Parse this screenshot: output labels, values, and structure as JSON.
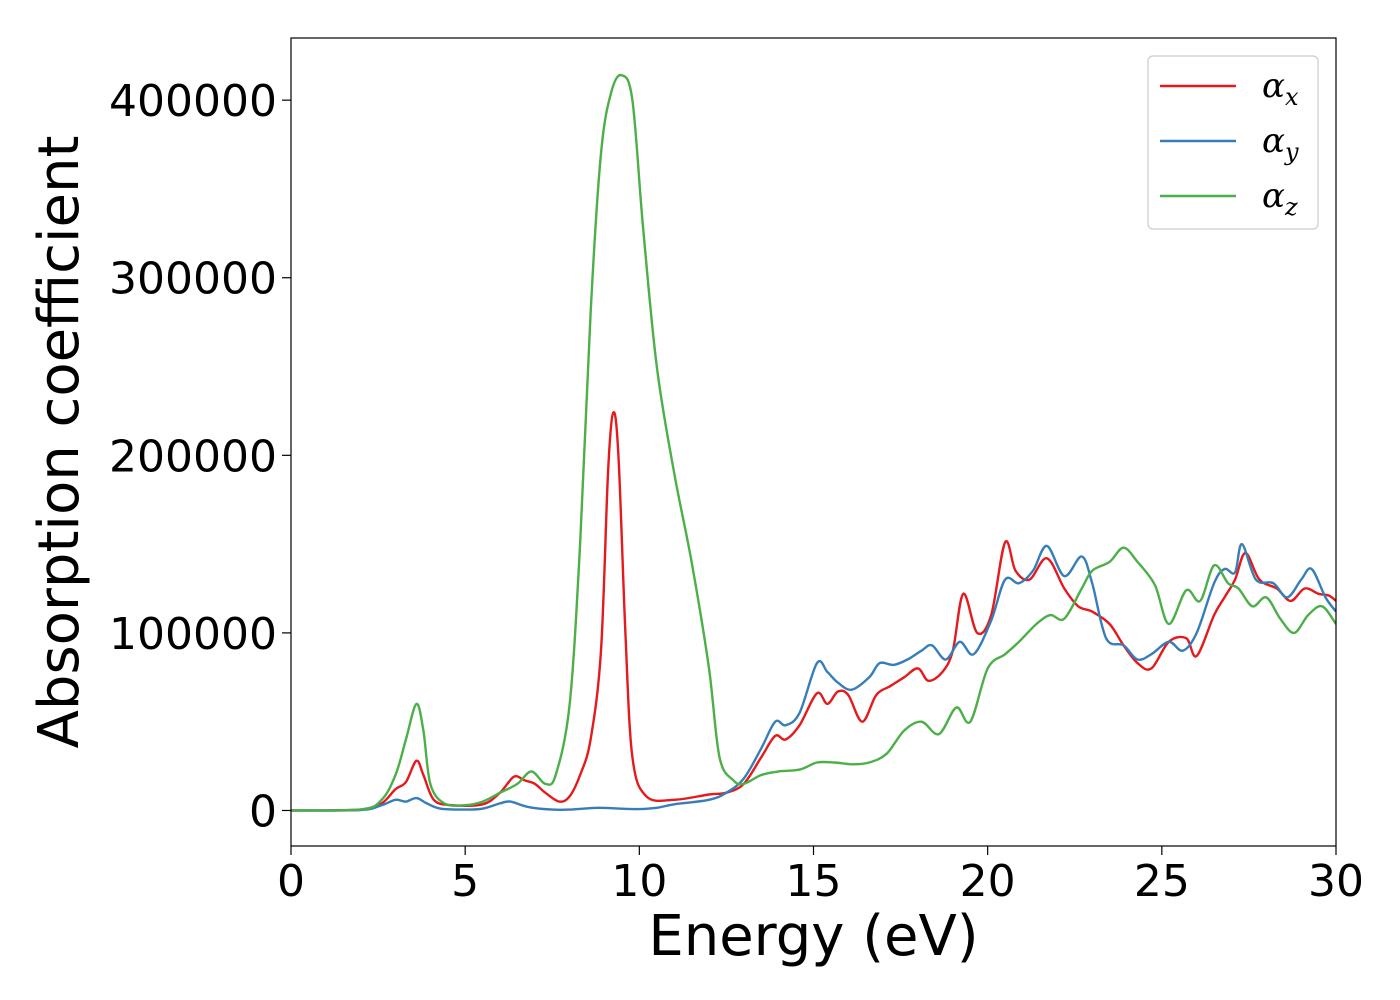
{
  "chart_data": {
    "type": "line",
    "title": "",
    "xlabel": "Energy (eV)",
    "ylabel": "Absorption coefficient",
    "xlim": [
      0,
      30
    ],
    "ylim": [
      -20000,
      435000
    ],
    "xticks": [
      0,
      5,
      10,
      15,
      20,
      25,
      30
    ],
    "yticks": [
      0,
      100000,
      200000,
      300000,
      400000
    ],
    "xtick_labels": [
      "0",
      "5",
      "10",
      "15",
      "20",
      "25",
      "30"
    ],
    "ytick_labels": [
      "0",
      "100000",
      "200000",
      "300000",
      "400000"
    ],
    "grid": false,
    "legend_position": "top-right",
    "series": [
      {
        "name": "α_x",
        "legend_symbol": "α",
        "legend_sub": "x",
        "color": "#e41a1c",
        "points": [
          [
            0,
            0
          ],
          [
            2,
            500
          ],
          [
            2.6,
            4000
          ],
          [
            3.0,
            12000
          ],
          [
            3.3,
            16000
          ],
          [
            3.6,
            28000
          ],
          [
            3.8,
            20000
          ],
          [
            4.1,
            6000
          ],
          [
            4.6,
            3000
          ],
          [
            5.5,
            3500
          ],
          [
            6.0,
            10000
          ],
          [
            6.4,
            19000
          ],
          [
            6.7,
            17000
          ],
          [
            7.0,
            15000
          ],
          [
            7.3,
            10000
          ],
          [
            7.7,
            5000
          ],
          [
            8.0,
            8000
          ],
          [
            8.3,
            20000
          ],
          [
            8.6,
            40000
          ],
          [
            8.9,
            90000
          ],
          [
            9.1,
            190000
          ],
          [
            9.25,
            224000
          ],
          [
            9.4,
            200000
          ],
          [
            9.6,
            100000
          ],
          [
            9.8,
            30000
          ],
          [
            10.2,
            8000
          ],
          [
            11,
            6000
          ],
          [
            12,
            9000
          ],
          [
            12.5,
            10000
          ],
          [
            13,
            15000
          ],
          [
            13.5,
            30000
          ],
          [
            13.9,
            42000
          ],
          [
            14.2,
            40000
          ],
          [
            14.6,
            48000
          ],
          [
            15.1,
            66000
          ],
          [
            15.4,
            60000
          ],
          [
            15.7,
            67000
          ],
          [
            16.0,
            65000
          ],
          [
            16.4,
            50000
          ],
          [
            16.8,
            65000
          ],
          [
            17.2,
            70000
          ],
          [
            17.6,
            75000
          ],
          [
            18.0,
            80000
          ],
          [
            18.3,
            73000
          ],
          [
            18.7,
            78000
          ],
          [
            19.0,
            90000
          ],
          [
            19.3,
            122000
          ],
          [
            19.7,
            100000
          ],
          [
            20.1,
            110000
          ],
          [
            20.5,
            151000
          ],
          [
            20.8,
            135000
          ],
          [
            21.2,
            130000
          ],
          [
            21.7,
            142000
          ],
          [
            22.2,
            125000
          ],
          [
            22.6,
            115000
          ],
          [
            23.0,
            112000
          ],
          [
            23.5,
            105000
          ],
          [
            23.9,
            93000
          ],
          [
            24.3,
            83000
          ],
          [
            24.7,
            80000
          ],
          [
            25.2,
            95000
          ],
          [
            25.7,
            97000
          ],
          [
            26.0,
            87000
          ],
          [
            26.5,
            110000
          ],
          [
            26.8,
            120000
          ],
          [
            27.1,
            130000
          ],
          [
            27.4,
            145000
          ],
          [
            27.8,
            130000
          ],
          [
            28.3,
            125000
          ],
          [
            28.7,
            118000
          ],
          [
            29.1,
            125000
          ],
          [
            29.5,
            122000
          ],
          [
            29.8,
            121000
          ],
          [
            30,
            118000
          ]
        ]
      },
      {
        "name": "α_y",
        "legend_symbol": "α",
        "legend_sub": "y",
        "color": "#377eb8",
        "points": [
          [
            0,
            0
          ],
          [
            2,
            300
          ],
          [
            2.6,
            3000
          ],
          [
            3.0,
            6000
          ],
          [
            3.3,
            5000
          ],
          [
            3.6,
            7000
          ],
          [
            3.9,
            4000
          ],
          [
            4.3,
            1000
          ],
          [
            5.0,
            500
          ],
          [
            5.5,
            1000
          ],
          [
            6.0,
            4000
          ],
          [
            6.3,
            5000
          ],
          [
            6.8,
            2000
          ],
          [
            7.5,
            500
          ],
          [
            8.0,
            500
          ],
          [
            8.8,
            1500
          ],
          [
            9.5,
            1000
          ],
          [
            10.0,
            800
          ],
          [
            10.5,
            1500
          ],
          [
            11,
            3500
          ],
          [
            12,
            6000
          ],
          [
            12.5,
            10000
          ],
          [
            13,
            18000
          ],
          [
            13.5,
            35000
          ],
          [
            13.9,
            50000
          ],
          [
            14.2,
            48000
          ],
          [
            14.6,
            55000
          ],
          [
            15.1,
            83000
          ],
          [
            15.4,
            78000
          ],
          [
            15.7,
            72000
          ],
          [
            16.1,
            68000
          ],
          [
            16.6,
            75000
          ],
          [
            16.9,
            83000
          ],
          [
            17.3,
            82000
          ],
          [
            17.7,
            85000
          ],
          [
            18.1,
            90000
          ],
          [
            18.4,
            93000
          ],
          [
            18.8,
            85000
          ],
          [
            19.2,
            95000
          ],
          [
            19.6,
            88000
          ],
          [
            20.1,
            107000
          ],
          [
            20.5,
            130000
          ],
          [
            20.9,
            128000
          ],
          [
            21.3,
            135000
          ],
          [
            21.7,
            149000
          ],
          [
            22.2,
            132000
          ],
          [
            22.7,
            143000
          ],
          [
            23.0,
            128000
          ],
          [
            23.4,
            97000
          ],
          [
            23.9,
            93000
          ],
          [
            24.3,
            85000
          ],
          [
            24.7,
            88000
          ],
          [
            25.2,
            95000
          ],
          [
            25.6,
            90000
          ],
          [
            26.0,
            100000
          ],
          [
            26.5,
            128000
          ],
          [
            26.8,
            136000
          ],
          [
            27.1,
            134000
          ],
          [
            27.3,
            150000
          ],
          [
            27.7,
            130000
          ],
          [
            28.2,
            128000
          ],
          [
            28.6,
            120000
          ],
          [
            29.0,
            130000
          ],
          [
            29.3,
            136000
          ],
          [
            29.7,
            120000
          ],
          [
            30,
            112000
          ]
        ]
      },
      {
        "name": "α_z",
        "legend_symbol": "α",
        "legend_sub": "z",
        "color": "#4daf4a",
        "points": [
          [
            0,
            0
          ],
          [
            2,
            600
          ],
          [
            2.6,
            6000
          ],
          [
            3.0,
            20000
          ],
          [
            3.3,
            40000
          ],
          [
            3.6,
            60000
          ],
          [
            3.8,
            45000
          ],
          [
            4.0,
            15000
          ],
          [
            4.4,
            4000
          ],
          [
            5.0,
            3000
          ],
          [
            5.5,
            5000
          ],
          [
            6.0,
            10000
          ],
          [
            6.5,
            15000
          ],
          [
            6.9,
            22000
          ],
          [
            7.3,
            15000
          ],
          [
            7.6,
            20000
          ],
          [
            8.0,
            60000
          ],
          [
            8.3,
            150000
          ],
          [
            8.6,
            280000
          ],
          [
            8.9,
            370000
          ],
          [
            9.2,
            405000
          ],
          [
            9.5,
            414000
          ],
          [
            9.8,
            400000
          ],
          [
            10.1,
            330000
          ],
          [
            10.5,
            250000
          ],
          [
            11.0,
            190000
          ],
          [
            11.5,
            140000
          ],
          [
            12.0,
            80000
          ],
          [
            12.3,
            30000
          ],
          [
            12.7,
            17000
          ],
          [
            13.0,
            15000
          ],
          [
            13.5,
            20000
          ],
          [
            14.0,
            22000
          ],
          [
            14.6,
            23000
          ],
          [
            15.1,
            27000
          ],
          [
            15.6,
            27000
          ],
          [
            16.1,
            26000
          ],
          [
            16.6,
            27000
          ],
          [
            17.1,
            32000
          ],
          [
            17.6,
            45000
          ],
          [
            18.1,
            50000
          ],
          [
            18.6,
            43000
          ],
          [
            19.1,
            58000
          ],
          [
            19.5,
            50000
          ],
          [
            20.0,
            80000
          ],
          [
            20.5,
            88000
          ],
          [
            20.9,
            95000
          ],
          [
            21.4,
            105000
          ],
          [
            21.8,
            110000
          ],
          [
            22.2,
            108000
          ],
          [
            22.7,
            125000
          ],
          [
            23.0,
            135000
          ],
          [
            23.5,
            140000
          ],
          [
            23.9,
            148000
          ],
          [
            24.3,
            140000
          ],
          [
            24.8,
            127000
          ],
          [
            25.2,
            105000
          ],
          [
            25.7,
            124000
          ],
          [
            26.1,
            118000
          ],
          [
            26.5,
            138000
          ],
          [
            26.9,
            128000
          ],
          [
            27.2,
            125000
          ],
          [
            27.6,
            115000
          ],
          [
            28.0,
            120000
          ],
          [
            28.4,
            108000
          ],
          [
            28.8,
            100000
          ],
          [
            29.2,
            110000
          ],
          [
            29.6,
            115000
          ],
          [
            30,
            105000
          ]
        ]
      }
    ]
  }
}
